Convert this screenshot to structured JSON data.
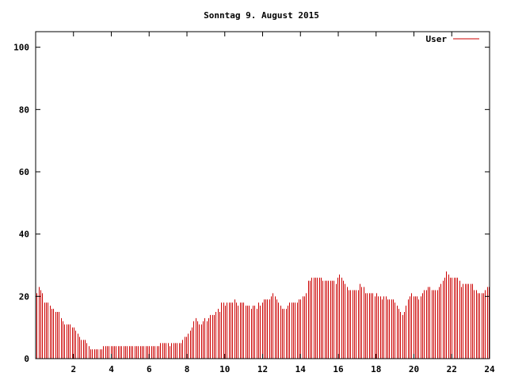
{
  "chart_data": {
    "type": "bar",
    "title": "Sonntag 9. August 2015",
    "xlabel": "",
    "ylabel": "",
    "xlim": [
      0,
      24
    ],
    "ylim": [
      0,
      105
    ],
    "x_ticks": [
      "2",
      "4",
      "6",
      "8",
      "10",
      "12",
      "14",
      "16",
      "18",
      "20",
      "22",
      "24"
    ],
    "y_ticks": [
      "0",
      "20",
      "40",
      "60",
      "80",
      "100"
    ],
    "grid": false,
    "legend_position": "top-right",
    "series": [
      {
        "name": "User",
        "color": "#cc0000",
        "values": [
          21,
          23,
          22,
          21,
          18,
          18,
          18,
          17,
          16,
          16,
          15,
          15,
          15,
          13,
          12,
          11,
          11,
          11,
          11,
          10,
          10,
          9,
          8,
          7,
          6,
          6,
          6,
          5,
          4,
          3,
          3,
          3,
          3,
          3,
          3,
          3,
          4,
          4,
          4,
          4,
          4,
          4,
          4,
          4,
          4,
          4,
          4,
          4,
          4,
          4,
          4,
          4,
          4,
          4,
          4,
          4,
          4,
          4,
          4,
          4,
          4,
          4,
          4,
          4,
          4,
          4,
          4,
          5,
          5,
          5,
          5,
          5,
          4,
          5,
          5,
          5,
          5,
          5,
          5,
          6,
          7,
          7,
          8,
          9,
          10,
          12,
          13,
          12,
          11,
          11,
          12,
          13,
          12,
          13,
          14,
          14,
          14,
          15,
          16,
          15,
          18,
          18,
          17,
          18,
          18,
          18,
          18,
          19,
          18,
          17,
          18,
          18,
          18,
          17,
          17,
          17,
          16,
          17,
          17,
          16,
          18,
          17,
          18,
          19,
          19,
          19,
          19,
          20,
          21,
          20,
          19,
          18,
          17,
          16,
          16,
          16,
          17,
          18,
          18,
          18,
          18,
          18,
          19,
          19,
          20,
          20,
          21,
          25,
          25,
          26,
          26,
          26,
          26,
          26,
          26,
          25,
          25,
          25,
          25,
          25,
          25,
          25,
          24,
          26,
          27,
          26,
          25,
          24,
          23,
          22,
          22,
          22,
          22,
          22,
          22,
          24,
          23,
          23,
          21,
          21,
          21,
          21,
          21,
          20,
          21,
          20,
          20,
          19,
          20,
          20,
          19,
          19,
          19,
          19,
          18,
          17,
          16,
          15,
          14,
          15,
          17,
          19,
          20,
          21,
          20,
          20,
          20,
          19,
          20,
          21,
          22,
          22,
          23,
          23,
          22,
          22,
          22,
          22,
          23,
          24,
          25,
          26,
          28,
          27,
          26,
          26,
          26,
          26,
          26,
          25,
          23,
          24,
          24,
          24,
          24,
          24,
          24,
          22,
          22,
          21,
          21,
          21,
          21,
          22,
          23,
          23
        ]
      }
    ]
  }
}
